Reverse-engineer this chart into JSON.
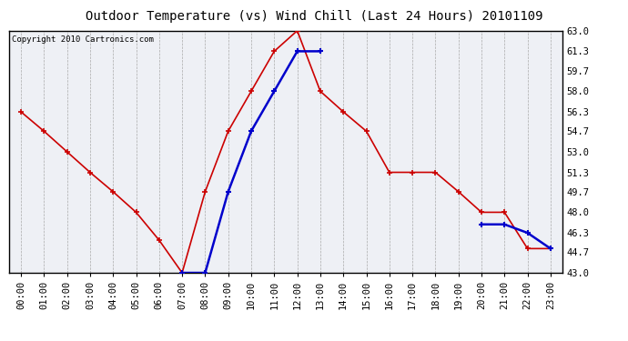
{
  "title": "Outdoor Temperature (vs) Wind Chill (Last 24 Hours) 20101109",
  "copyright_text": "Copyright 2010 Cartronics.com",
  "x_labels": [
    "00:00",
    "01:00",
    "02:00",
    "03:00",
    "04:00",
    "05:00",
    "06:00",
    "07:00",
    "08:00",
    "09:00",
    "10:00",
    "11:00",
    "12:00",
    "13:00",
    "14:00",
    "15:00",
    "16:00",
    "17:00",
    "18:00",
    "19:00",
    "20:00",
    "21:00",
    "22:00",
    "23:00"
  ],
  "outdoor_temp": [
    56.3,
    54.7,
    53.0,
    51.3,
    49.7,
    48.0,
    45.7,
    43.0,
    49.7,
    54.7,
    58.0,
    61.3,
    63.0,
    58.0,
    56.3,
    54.7,
    51.3,
    51.3,
    51.3,
    49.7,
    48.0,
    48.0,
    45.0,
    45.0
  ],
  "wind_chill_segments": [
    {
      "x": [
        7,
        8,
        9,
        10,
        11,
        12,
        13
      ],
      "y": [
        43.0,
        43.0,
        49.7,
        54.7,
        58.0,
        61.3,
        61.3
      ]
    },
    {
      "x": [
        20,
        21,
        22,
        23
      ],
      "y": [
        47.0,
        47.0,
        46.3,
        45.0
      ]
    }
  ],
  "ylim": [
    43.0,
    63.0
  ],
  "yticks": [
    43.0,
    44.7,
    46.3,
    48.0,
    49.7,
    51.3,
    53.0,
    54.7,
    56.3,
    58.0,
    59.7,
    61.3,
    63.0
  ],
  "temp_color": "#cc0000",
  "wind_color": "#0000cc",
  "bg_color": "#ffffff",
  "plot_bg_color": "#eef0f5",
  "grid_color": "#aaaaaa",
  "title_fontsize": 10,
  "tick_fontsize": 7.5,
  "copyright_fontsize": 6.5
}
